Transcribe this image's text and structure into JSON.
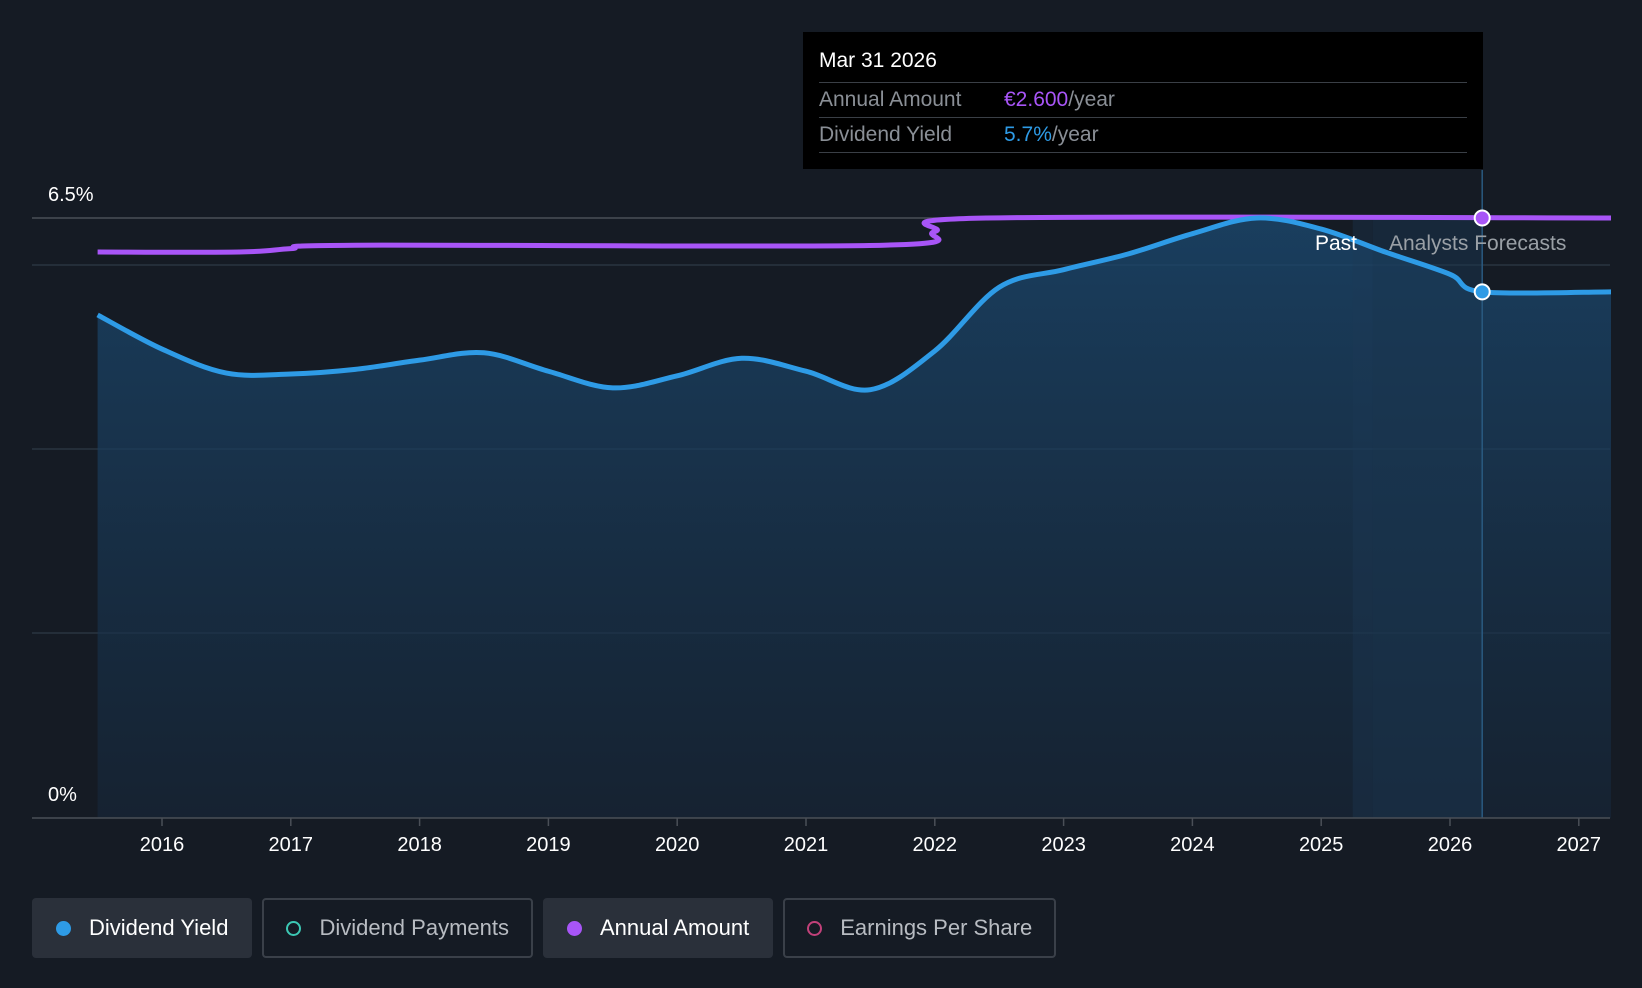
{
  "chart_data": {
    "type": "line",
    "x_ticks": [
      "2016",
      "2017",
      "2018",
      "2019",
      "2020",
      "2021",
      "2022",
      "2023",
      "2024",
      "2025",
      "2026",
      "2027"
    ],
    "y_labels": {
      "top": "6.5%",
      "bottom": "0%"
    },
    "ylim": [
      0,
      6.5
    ],
    "xlim": [
      2015.0,
      2027.25
    ],
    "past_label": "Past",
    "forecast_label": "Analysts Forecasts",
    "forecast_start": 2025.4,
    "series": [
      {
        "name": "Dividend Yield",
        "color": "#2e9be6",
        "unit": "%",
        "points": [
          [
            2015.5,
            5.45
          ],
          [
            2016.0,
            5.08
          ],
          [
            2016.5,
            4.82
          ],
          [
            2017.0,
            4.81
          ],
          [
            2017.5,
            4.86
          ],
          [
            2018.0,
            4.96
          ],
          [
            2018.5,
            5.04
          ],
          [
            2019.0,
            4.84
          ],
          [
            2019.5,
            4.66
          ],
          [
            2020.0,
            4.79
          ],
          [
            2020.5,
            4.98
          ],
          [
            2021.0,
            4.84
          ],
          [
            2021.5,
            4.64
          ],
          [
            2022.0,
            5.06
          ],
          [
            2022.5,
            5.75
          ],
          [
            2023.0,
            5.94
          ],
          [
            2023.5,
            6.11
          ],
          [
            2024.0,
            6.33
          ],
          [
            2024.5,
            6.5
          ],
          [
            2025.0,
            6.38
          ],
          [
            2025.5,
            6.13
          ],
          [
            2026.0,
            5.89
          ],
          [
            2026.25,
            5.7
          ],
          [
            2027.25,
            5.7
          ]
        ]
      },
      {
        "name": "Annual Amount",
        "color": "#a855f7",
        "unit": "EUR",
        "points": [
          [
            2015.5,
            2.4
          ],
          [
            2016.6,
            2.4
          ],
          [
            2017.0,
            2.42
          ],
          [
            2017.5,
            2.44
          ],
          [
            2021.6,
            2.44
          ],
          [
            2022.0,
            2.52
          ],
          [
            2022.4,
            2.6
          ],
          [
            2027.25,
            2.6
          ]
        ]
      }
    ],
    "highlight": {
      "x": 2026.25,
      "yield": 5.7,
      "amount": 2.6
    }
  },
  "tooltip": {
    "date": "Mar 31 2026",
    "annual_amount_label": "Annual Amount",
    "annual_amount_value": "€2.600",
    "annual_amount_unit": "/year",
    "dividend_yield_label": "Dividend Yield",
    "dividend_yield_value": "5.7%",
    "dividend_yield_unit": "/year"
  },
  "legend": [
    {
      "label": "Dividend Yield",
      "color": "#2e9be6",
      "active": true,
      "filled": true
    },
    {
      "label": "Dividend Payments",
      "color": "#3cc8b4",
      "active": false,
      "filled": false
    },
    {
      "label": "Annual Amount",
      "color": "#a855f7",
      "active": true,
      "filled": true
    },
    {
      "label": "Earnings Per Share",
      "color": "#c2417a",
      "active": false,
      "filled": false
    }
  ]
}
